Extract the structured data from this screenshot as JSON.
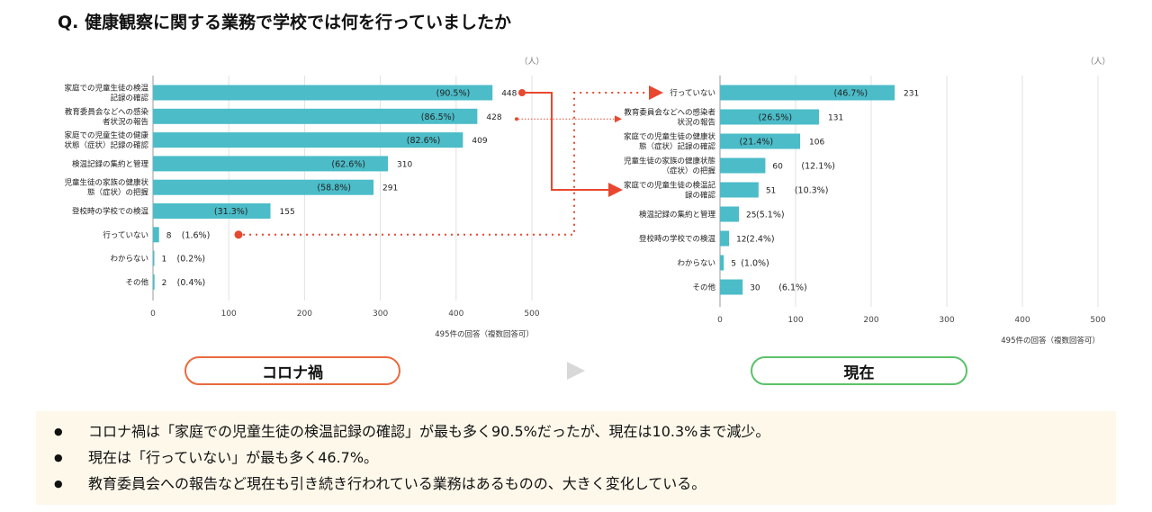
{
  "title": "Q. 健康観察に関する業務で学校では何を行っていましたか",
  "chart_data": [
    {
      "type": "bar",
      "unit": "（人）",
      "note": "495件の回答（複数回答可）",
      "xlim": [
        0,
        500
      ],
      "ticks": [
        0,
        100,
        200,
        300,
        400,
        500
      ],
      "categories": [
        [
          "家庭での児童生徒の検温",
          "記録の確認"
        ],
        [
          "教育委員会などへの感染",
          "者状況の報告"
        ],
        [
          "家庭での児童生徒の健康",
          "状態（症状）記録の確認"
        ],
        [
          "検温記録の集約と管理"
        ],
        [
          "児童生徒の家族の健康状",
          "態（症状）の把握"
        ],
        [
          "登校時の学校での検温"
        ],
        [
          "行っていない"
        ],
        [
          "わからない"
        ],
        [
          "その他"
        ]
      ],
      "values": [
        448,
        428,
        409,
        310,
        291,
        155,
        8,
        1,
        2
      ],
      "percents": [
        "(90.5%)",
        "(86.5%)",
        "(82.6%)",
        "(62.6%)",
        "(58.8%)",
        "(31.3%)",
        "(1.6%)",
        "(0.2%)",
        "(0.4%)"
      ]
    },
    {
      "type": "bar",
      "unit": "（人）",
      "note": "495件の回答（複数回答可）",
      "xlim": [
        0,
        500
      ],
      "ticks": [
        0,
        100,
        200,
        300,
        400,
        500
      ],
      "categories": [
        [
          "行っていない"
        ],
        [
          "教育委員会などへの感染者",
          "状況の報告"
        ],
        [
          "家庭での児童生徒の健康状",
          "態（症状）記録の確認"
        ],
        [
          "児童生徒の家族の健康状態",
          "（症状）の把握"
        ],
        [
          "家庭での児童生徒の検温記",
          "録の確認"
        ],
        [
          "検温記録の集約と管理"
        ],
        [
          "登校時の学校での検温"
        ],
        [
          "わからない"
        ],
        [
          "その他"
        ]
      ],
      "values": [
        231,
        131,
        106,
        60,
        51,
        25,
        12,
        5,
        30
      ],
      "percents": [
        "(46.7%)",
        "(26.5%)",
        "(21.4%)",
        "(12.1%)",
        "(10.3%)",
        "(5.1%)",
        "(2.4%)",
        "(1.0%)",
        "(6.1%)"
      ]
    }
  ],
  "labels": {
    "left_period": "コロナ禍",
    "right_period": "現在"
  },
  "colors": {
    "bar": "#4bbcc8",
    "arrow": "#e8482f",
    "grid": "#e2e2e2"
  },
  "summary": [
    "コロナ禍は「家庭での児童生徒の検温記録の確認」が最も多く90.5%だったが、現在は10.3%まで減少。",
    "現在は「行っていない」が最も多く46.7%。",
    "教育委員会への報告など現在も引き続き行われている業務はあるものの、大きく変化している。"
  ]
}
